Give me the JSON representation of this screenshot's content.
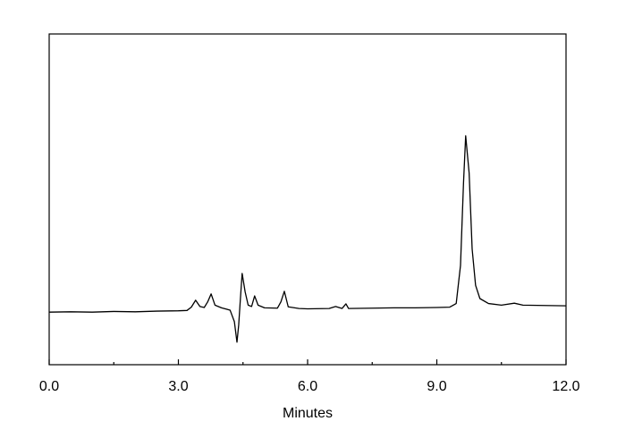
{
  "chart_data": {
    "type": "line",
    "xlabel": "Minutes",
    "x": [
      0.0,
      0.5,
      1.0,
      1.5,
      2.0,
      2.5,
      3.0,
      3.2,
      3.3,
      3.4,
      3.5,
      3.6,
      3.68,
      3.76,
      3.85,
      4.0,
      4.2,
      4.3,
      4.36,
      4.4,
      4.44,
      4.48,
      4.55,
      4.62,
      4.7,
      4.77,
      4.85,
      5.0,
      5.3,
      5.38,
      5.46,
      5.55,
      5.8,
      6.0,
      6.5,
      6.65,
      6.8,
      6.89,
      6.95,
      7.5,
      8.0,
      8.5,
      9.0,
      9.3,
      9.45,
      9.55,
      9.62,
      9.67,
      9.75,
      9.82,
      9.9,
      10.0,
      10.2,
      10.5,
      10.8,
      11.0,
      11.5,
      12.0
    ],
    "values": [
      15.9,
      16.0,
      15.9,
      16.1,
      16.0,
      16.2,
      16.3,
      16.4,
      17.4,
      19.5,
      17.6,
      17.3,
      19.0,
      21.4,
      18.0,
      17.2,
      16.5,
      13.0,
      6.8,
      12.0,
      20.0,
      27.6,
      22.0,
      18.0,
      17.6,
      20.8,
      18.0,
      17.2,
      17.1,
      19.0,
      22.2,
      17.5,
      17.0,
      16.9,
      17.0,
      17.6,
      17.0,
      18.4,
      17.0,
      17.1,
      17.2,
      17.2,
      17.3,
      17.4,
      18.5,
      30.0,
      55.0,
      69.2,
      58.0,
      35.0,
      24.0,
      20.0,
      18.5,
      18.0,
      18.6,
      18.0,
      17.9,
      17.8
    ],
    "color": "#000000",
    "xlim": [
      0.0,
      12.0
    ],
    "xticks": [
      {
        "value": 0,
        "label": "0.0"
      },
      {
        "value": 3,
        "label": "3.0"
      },
      {
        "value": 6,
        "label": "6.0"
      },
      {
        "value": 9,
        "label": "9.0"
      },
      {
        "value": 12,
        "label": "12.0"
      }
    ],
    "xticks_minor": [
      1.5,
      4.5,
      7.5,
      10.5
    ],
    "ylim": [
      0,
      100
    ]
  }
}
